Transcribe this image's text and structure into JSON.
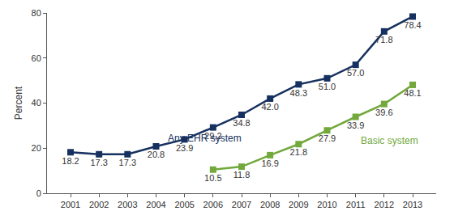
{
  "chart_data": {
    "type": "line",
    "y_label": "Percent",
    "categories": [
      "2001",
      "2002",
      "2003",
      "2004",
      "2005",
      "2006",
      "2007",
      "2008",
      "2009",
      "2010",
      "2011",
      "2012",
      "2013"
    ],
    "series": [
      {
        "name": "Any EHR system",
        "color": "#16315f",
        "marker": "square",
        "line_style": "solid",
        "values": [
          18.2,
          17.3,
          17.3,
          20.8,
          23.9,
          29.2,
          34.8,
          42.0,
          48.3,
          51.0,
          57.0,
          71.8,
          78.4
        ],
        "value_labels": [
          "18.2",
          "17.3",
          "17.3",
          "20.8",
          "23.9",
          "29.2",
          "34.8",
          "42.0",
          "48.3",
          "51.0",
          "57.0",
          "71.8",
          "78.4"
        ]
      },
      {
        "name": "Basic system",
        "color": "#72a83c",
        "marker": "square",
        "line_style": "solid",
        "values": [
          null,
          null,
          null,
          null,
          null,
          10.5,
          11.8,
          16.9,
          21.8,
          27.9,
          33.9,
          39.6,
          48.1
        ],
        "value_labels": [
          null,
          null,
          null,
          null,
          null,
          "10.5",
          "11.8",
          "16.9",
          "21.8",
          "27.9",
          "33.9",
          "39.6",
          "48.1"
        ]
      }
    ],
    "ylim": [
      0,
      80
    ],
    "yticks": [
      0,
      20,
      40,
      60,
      80
    ],
    "grid": false,
    "data_labels": true
  }
}
